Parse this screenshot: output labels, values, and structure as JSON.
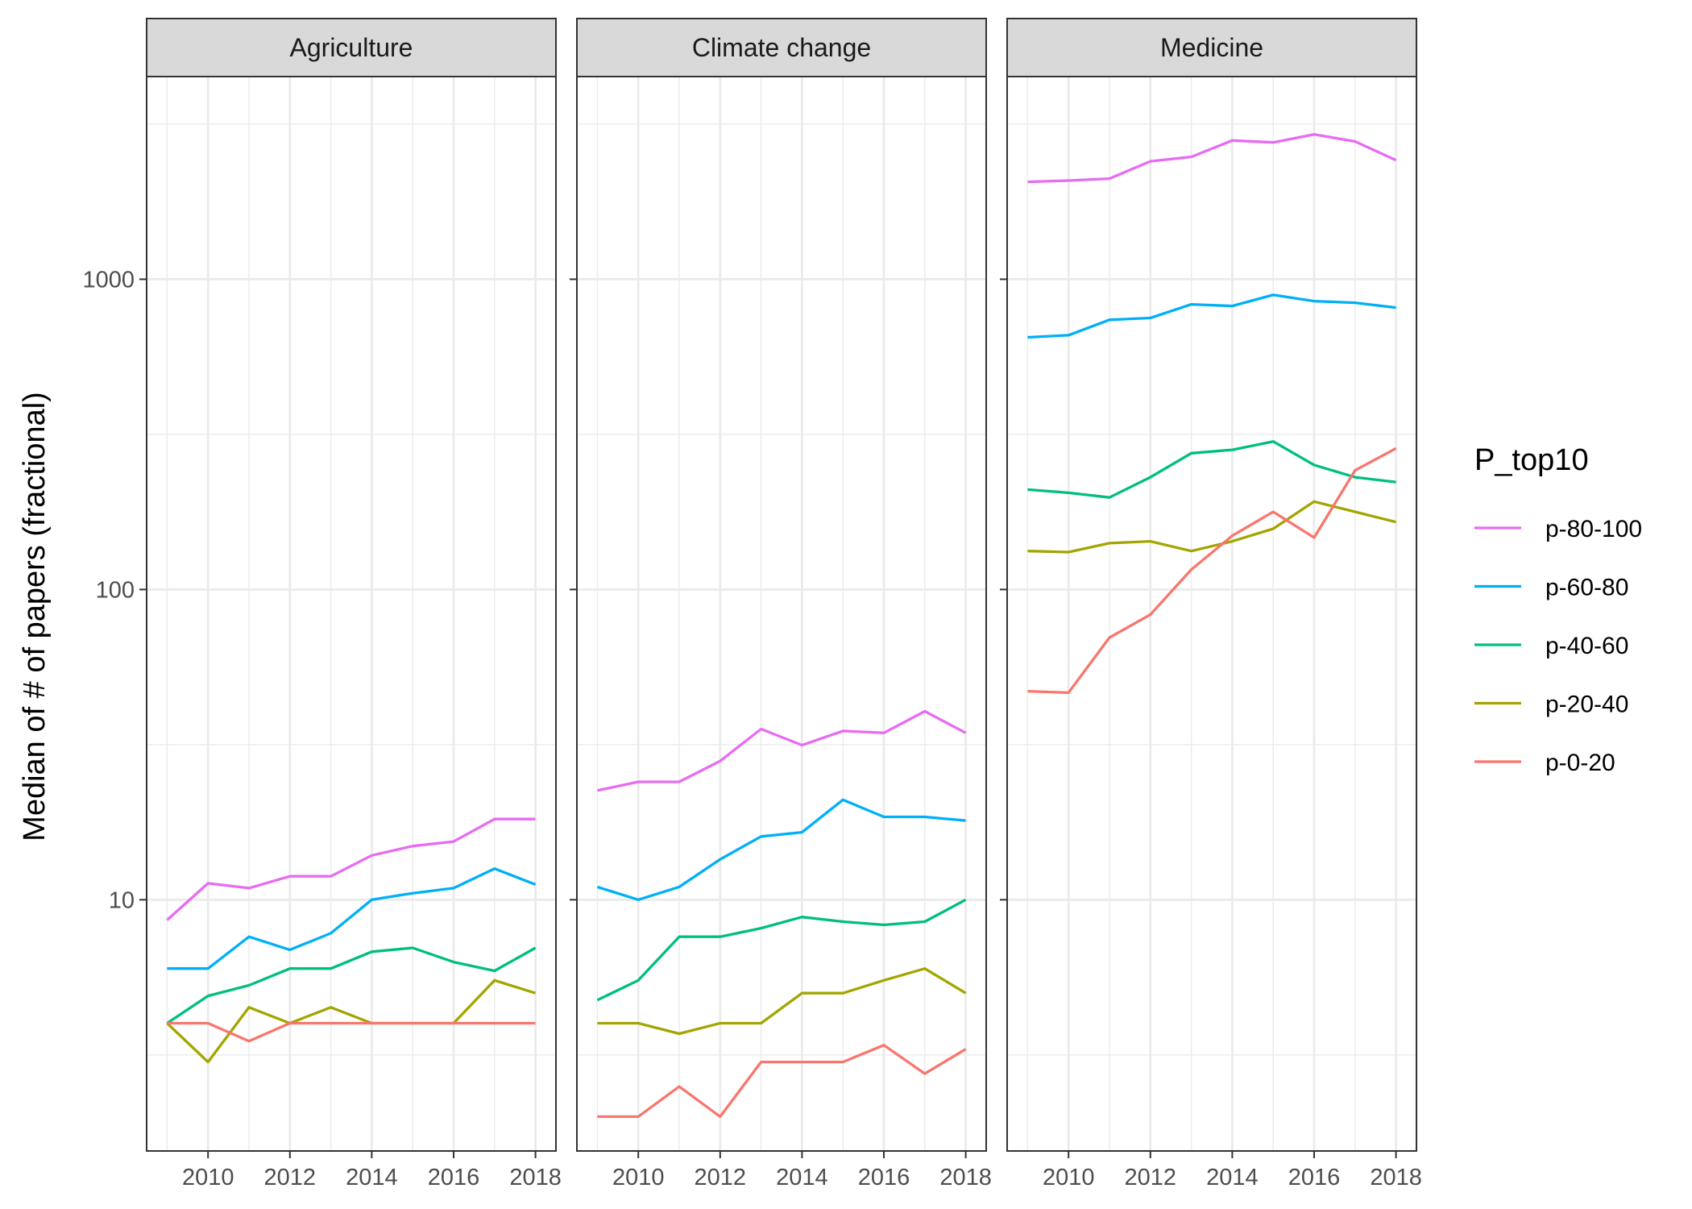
{
  "chart_data": {
    "type": "line",
    "ylabel": "Median of # of papers (fractional)",
    "xlabel": "",
    "y_scale": "log10",
    "ylim": [
      1.55,
      4500
    ],
    "xlim": [
      2008.5,
      2018.5
    ],
    "y_ticks": [
      10,
      100,
      1000
    ],
    "y_tick_labels": [
      "10",
      "100",
      "1000"
    ],
    "x_ticks": [
      2010,
      2012,
      2014,
      2016,
      2018
    ],
    "x_tick_labels": [
      "2010",
      "2012",
      "2014",
      "2016",
      "2018"
    ],
    "grid": true,
    "legend": {
      "title": "P_top10",
      "position": "right",
      "entries": [
        "p-80-100",
        "p-60-80",
        "p-40-60",
        "p-20-40",
        "p-0-20"
      ]
    },
    "colors": {
      "p-80-100": "#E76BF3",
      "p-60-80": "#00B0F6",
      "p-40-60": "#00BF7D",
      "p-20-40": "#A3A500",
      "p-0-20": "#F8766D"
    },
    "x": [
      2009,
      2010,
      2011,
      2012,
      2013,
      2014,
      2015,
      2016,
      2017,
      2018
    ],
    "panels": [
      {
        "title": "Agriculture",
        "series": [
          {
            "name": "p-80-100",
            "values": [
              8.6,
              11.3,
              10.9,
              11.9,
              11.9,
              13.9,
              14.9,
              15.4,
              18.2,
              18.2
            ]
          },
          {
            "name": "p-60-80",
            "values": [
              6.0,
              6.0,
              7.6,
              6.9,
              7.8,
              10.0,
              10.5,
              10.9,
              12.6,
              11.2
            ]
          },
          {
            "name": "p-40-60",
            "values": [
              4.0,
              4.9,
              5.3,
              6.0,
              6.0,
              6.8,
              7.0,
              6.3,
              5.9,
              7.0
            ]
          },
          {
            "name": "p-20-40",
            "values": [
              4.0,
              3.0,
              4.5,
              4.0,
              4.5,
              4.0,
              4.0,
              4.0,
              5.5,
              5.0
            ]
          },
          {
            "name": "p-0-20",
            "values": [
              4.0,
              4.0,
              3.5,
              4.0,
              4.0,
              4.0,
              4.0,
              4.0,
              4.0,
              4.0
            ]
          }
        ]
      },
      {
        "title": "Climate change",
        "series": [
          {
            "name": "p-80-100",
            "values": [
              22.5,
              24.0,
              24.0,
              28.0,
              35.5,
              31.5,
              35.0,
              34.5,
              40.5,
              34.5
            ]
          },
          {
            "name": "p-60-80",
            "values": [
              11.0,
              10.0,
              11.0,
              13.5,
              16.0,
              16.5,
              21.0,
              18.5,
              18.5,
              18.0
            ]
          },
          {
            "name": "p-40-60",
            "values": [
              4.75,
              5.5,
              7.6,
              7.6,
              8.1,
              8.8,
              8.5,
              8.3,
              8.5,
              10.0
            ]
          },
          {
            "name": "p-20-40",
            "values": [
              4.0,
              4.0,
              3.7,
              4.0,
              4.0,
              5.0,
              5.0,
              5.5,
              6.0,
              5.0
            ]
          },
          {
            "name": "p-0-20",
            "values": [
              2.0,
              2.0,
              2.5,
              2.0,
              3.0,
              3.0,
              3.0,
              3.4,
              2.75,
              3.3
            ]
          }
        ]
      },
      {
        "title": "Medicine",
        "series": [
          {
            "name": "p-80-100",
            "values": [
              2060,
              2080,
              2110,
              2400,
              2480,
              2800,
              2760,
              2930,
              2780,
              2420
            ]
          },
          {
            "name": "p-60-80",
            "values": [
              650,
              660,
              740,
              750,
              830,
              820,
              890,
              850,
              840,
              810
            ]
          },
          {
            "name": "p-40-60",
            "values": [
              210,
              205,
              198,
              230,
              275,
              282,
              300,
              252,
              230,
              222
            ]
          },
          {
            "name": "p-20-40",
            "values": [
              133,
              132,
              141,
              143,
              133,
              143,
              157,
              192,
              178,
              165
            ]
          },
          {
            "name": "p-0-20",
            "values": [
              47,
              46.5,
              70,
              83,
              116,
              149,
              178,
              147,
              242,
              285
            ]
          }
        ]
      }
    ]
  }
}
